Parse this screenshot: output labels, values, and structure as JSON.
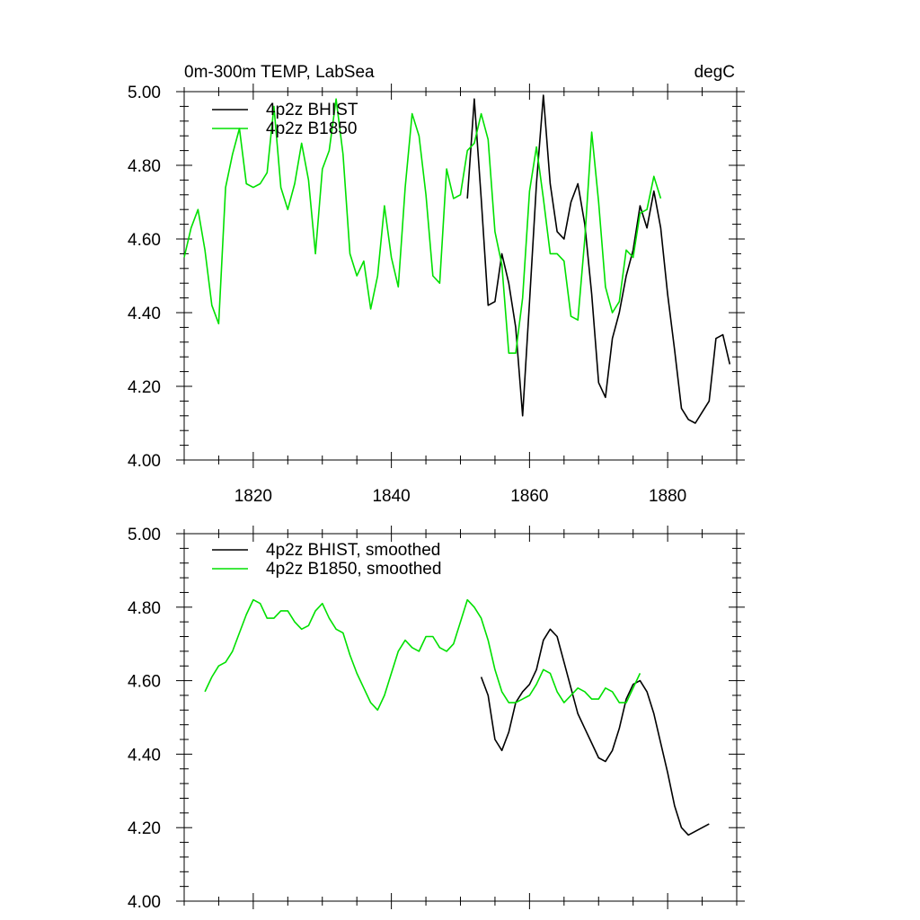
{
  "colors": {
    "bhist": "#000000",
    "b1850": "#00e000",
    "axis": "#000000"
  },
  "chart_data": [
    {
      "type": "line",
      "title": "0m-300m TEMP, LabSea",
      "units": "degC",
      "xlim": [
        1810,
        1890
      ],
      "ylim": [
        4.0,
        5.0
      ],
      "xticks": [
        "1820",
        "1840",
        "1860",
        "1880"
      ],
      "yticks": [
        "4.00",
        "4.20",
        "4.40",
        "4.60",
        "4.80",
        "5.00"
      ],
      "legend_position": "top-left",
      "series": [
        {
          "name": "4p2z BHIST",
          "color": "#000000",
          "x": [
            1851,
            1852,
            1853,
            1854,
            1855,
            1856,
            1857,
            1858,
            1859,
            1860,
            1861,
            1862,
            1863,
            1864,
            1865,
            1866,
            1867,
            1868,
            1869,
            1870,
            1871,
            1872,
            1873,
            1874,
            1875,
            1876,
            1877,
            1878,
            1879,
            1880,
            1881,
            1882,
            1883,
            1884,
            1885,
            1886,
            1887,
            1888,
            1889
          ],
          "y": [
            4.71,
            4.98,
            4.71,
            4.42,
            4.43,
            4.56,
            4.48,
            4.36,
            4.12,
            4.43,
            4.75,
            4.99,
            4.75,
            4.62,
            4.6,
            4.7,
            4.75,
            4.64,
            4.45,
            4.21,
            4.17,
            4.33,
            4.4,
            4.5,
            4.57,
            4.69,
            4.63,
            4.73,
            4.63,
            4.45,
            4.3,
            4.14,
            4.11,
            4.1,
            4.13,
            4.16,
            4.33,
            4.34,
            4.26
          ]
        },
        {
          "name": "4p2z B1850",
          "color": "#00e000",
          "x": [
            1810,
            1811,
            1812,
            1813,
            1814,
            1815,
            1816,
            1817,
            1818,
            1819,
            1820,
            1821,
            1822,
            1823,
            1824,
            1825,
            1826,
            1827,
            1828,
            1829,
            1830,
            1831,
            1832,
            1833,
            1834,
            1835,
            1836,
            1837,
            1838,
            1839,
            1840,
            1841,
            1842,
            1843,
            1844,
            1845,
            1846,
            1847,
            1848,
            1849,
            1850,
            1851,
            1852,
            1853,
            1854,
            1855,
            1856,
            1857,
            1858,
            1859,
            1860,
            1861,
            1862,
            1863,
            1864,
            1865,
            1866,
            1867,
            1868,
            1869,
            1870,
            1871,
            1872,
            1873,
            1874,
            1875,
            1876,
            1877,
            1878,
            1879
          ],
          "y": [
            4.55,
            4.63,
            4.68,
            4.57,
            4.42,
            4.37,
            4.74,
            4.83,
            4.9,
            4.75,
            4.74,
            4.75,
            4.78,
            4.96,
            4.74,
            4.68,
            4.75,
            4.86,
            4.76,
            4.56,
            4.79,
            4.84,
            4.98,
            4.83,
            4.56,
            4.5,
            4.54,
            4.41,
            4.5,
            4.69,
            4.55,
            4.47,
            4.74,
            4.94,
            4.88,
            4.72,
            4.5,
            4.48,
            4.79,
            4.71,
            4.72,
            4.84,
            4.86,
            4.94,
            4.87,
            4.62,
            4.53,
            4.29,
            4.29,
            4.44,
            4.73,
            4.85,
            4.71,
            4.56,
            4.56,
            4.54,
            4.39,
            4.38,
            4.6,
            4.89,
            4.7,
            4.47,
            4.4,
            4.43,
            4.57,
            4.55,
            4.67,
            4.68,
            4.77,
            4.71
          ]
        }
      ]
    },
    {
      "type": "line",
      "title": "",
      "units": "",
      "xlim": [
        1810,
        1890
      ],
      "ylim": [
        4.0,
        5.0
      ],
      "xticks": [],
      "yticks": [
        "4.00",
        "4.20",
        "4.40",
        "4.60",
        "4.80",
        "5.00"
      ],
      "legend_position": "top-left",
      "series": [
        {
          "name": "4p2z BHIST, smoothed",
          "color": "#000000",
          "x": [
            1853,
            1854,
            1855,
            1856,
            1857,
            1858,
            1859,
            1860,
            1861,
            1862,
            1863,
            1864,
            1865,
            1866,
            1867,
            1868,
            1869,
            1870,
            1871,
            1872,
            1873,
            1874,
            1875,
            1876,
            1877,
            1878,
            1879,
            1880,
            1881,
            1882,
            1883,
            1884,
            1885,
            1886
          ],
          "y": [
            4.61,
            4.56,
            4.44,
            4.41,
            4.46,
            4.54,
            4.57,
            4.59,
            4.63,
            4.71,
            4.74,
            4.72,
            4.65,
            4.58,
            4.51,
            4.47,
            4.43,
            4.39,
            4.38,
            4.41,
            4.47,
            4.55,
            4.59,
            4.6,
            4.57,
            4.51,
            4.43,
            4.35,
            4.26,
            4.2,
            4.18,
            4.19,
            4.2,
            4.21
          ]
        },
        {
          "name": "4p2z B1850, smoothed",
          "color": "#00e000",
          "x": [
            1813,
            1814,
            1815,
            1816,
            1817,
            1818,
            1819,
            1820,
            1821,
            1822,
            1823,
            1824,
            1825,
            1826,
            1827,
            1828,
            1829,
            1830,
            1831,
            1832,
            1833,
            1834,
            1835,
            1836,
            1837,
            1838,
            1839,
            1840,
            1841,
            1842,
            1843,
            1844,
            1845,
            1846,
            1847,
            1848,
            1849,
            1850,
            1851,
            1852,
            1853,
            1854,
            1855,
            1856,
            1857,
            1858,
            1859,
            1860,
            1861,
            1862,
            1863,
            1864,
            1865,
            1866,
            1867,
            1868,
            1869,
            1870,
            1871,
            1872,
            1873,
            1874,
            1875,
            1876
          ],
          "y": [
            4.57,
            4.61,
            4.64,
            4.65,
            4.68,
            4.73,
            4.78,
            4.82,
            4.81,
            4.77,
            4.77,
            4.79,
            4.79,
            4.76,
            4.74,
            4.75,
            4.79,
            4.81,
            4.77,
            4.74,
            4.73,
            4.67,
            4.62,
            4.58,
            4.54,
            4.52,
            4.56,
            4.62,
            4.68,
            4.71,
            4.69,
            4.68,
            4.72,
            4.72,
            4.69,
            4.68,
            4.7,
            4.76,
            4.82,
            4.8,
            4.77,
            4.71,
            4.63,
            4.57,
            4.54,
            4.54,
            4.55,
            4.56,
            4.59,
            4.63,
            4.62,
            4.57,
            4.54,
            4.56,
            4.58,
            4.57,
            4.55,
            4.55,
            4.58,
            4.57,
            4.54,
            4.54,
            4.58,
            4.62
          ]
        }
      ]
    }
  ]
}
